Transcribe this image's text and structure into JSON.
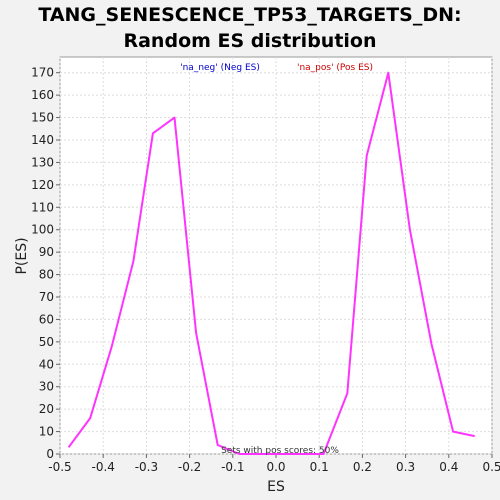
{
  "chart_data": {
    "type": "line",
    "title_line1": "TANG_SENESCENCE_TP53_TARGETS_DN:",
    "title_line2": "Random ES distribution",
    "xlabel": "ES",
    "ylabel": "P(ES)",
    "xlim": [
      -0.5,
      0.5
    ],
    "ylim": [
      0,
      177
    ],
    "x_ticks": [
      -0.5,
      -0.4,
      -0.3,
      -0.2,
      -0.1,
      0.0,
      0.1,
      0.2,
      0.3,
      0.4,
      0.5
    ],
    "x_tick_labels": [
      "-0.5",
      "-0.4",
      "-0.3",
      "-0.2",
      "-0.1",
      "0.0",
      "0.1",
      "0.2",
      "0.3",
      "0.4",
      "0.5"
    ],
    "y_ticks": [
      0,
      10,
      20,
      30,
      40,
      50,
      60,
      70,
      80,
      90,
      100,
      110,
      120,
      130,
      140,
      150,
      160,
      170
    ],
    "y_tick_labels": [
      "0",
      "10",
      "20",
      "30",
      "40",
      "50",
      "60",
      "70",
      "80",
      "90",
      "100",
      "110",
      "120",
      "130",
      "140",
      "150",
      "160",
      "170"
    ],
    "grid": true,
    "legend": [
      {
        "label": "'na_neg' (Neg ES)",
        "color": "#0000cc"
      },
      {
        "label": "'na_pos' (Pos ES)",
        "color": "#cc0000"
      }
    ],
    "annotation": "Sets with pos scores: 50%",
    "series": [
      {
        "color": "#ff33ff",
        "x": [
          -0.48,
          -0.43,
          -0.38,
          -0.33,
          -0.285,
          -0.235,
          -0.185,
          -0.135,
          -0.085,
          0.11,
          0.165,
          0.21,
          0.26,
          0.31,
          0.36,
          0.41,
          0.46
        ],
        "y": [
          3,
          16,
          48,
          86,
          143,
          150,
          54,
          4,
          0,
          0,
          27,
          133,
          170,
          100,
          49,
          10,
          8
        ]
      }
    ]
  }
}
